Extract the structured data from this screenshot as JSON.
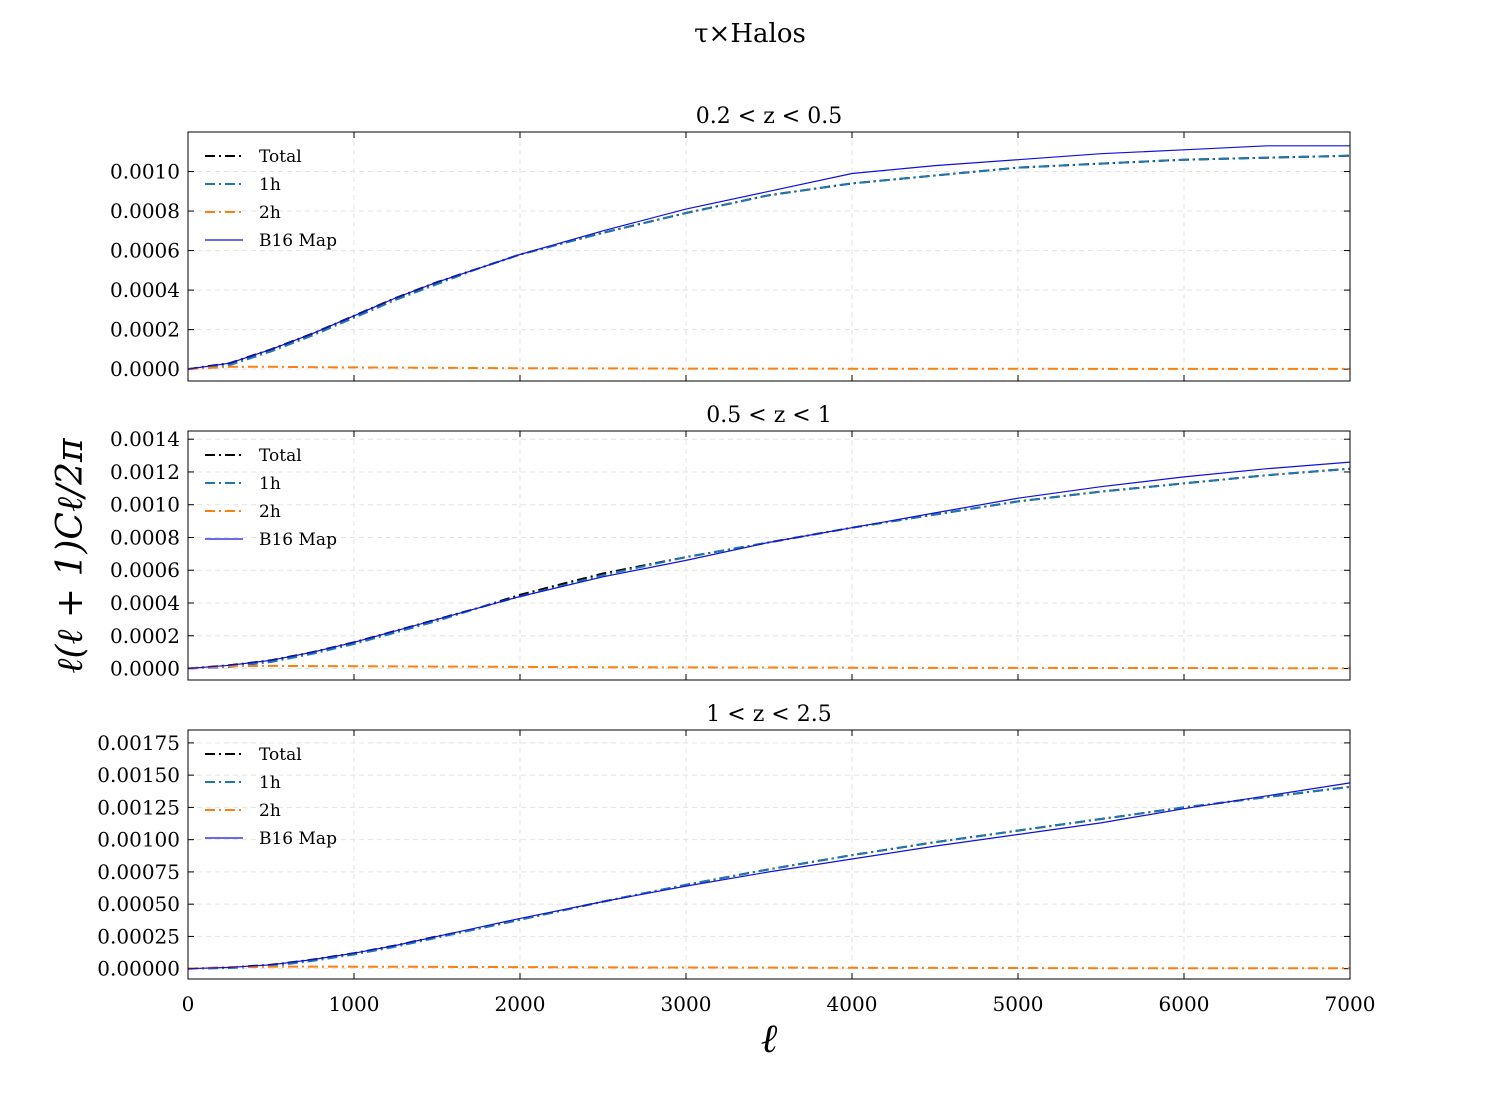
{
  "figure": {
    "suptitle": "τ×Halos",
    "xlabel": "ℓ",
    "ylabel": "ℓ(ℓ + 1)Cℓ/2π"
  },
  "chart_data": [
    {
      "type": "line",
      "title": "0.2 < z < 0.5",
      "xlim": [
        0,
        7000
      ],
      "ylim": [
        -6e-05,
        0.0012
      ],
      "xticks": [
        0,
        1000,
        2000,
        3000,
        4000,
        5000,
        6000,
        7000
      ],
      "yticks": [
        "0.0000",
        "0.0002",
        "0.0004",
        "0.0006",
        "0.0008",
        "0.0010"
      ],
      "grid": true,
      "legend_position": "upper-left",
      "x": [
        0,
        250,
        500,
        750,
        1000,
        1250,
        1500,
        1750,
        2000,
        2500,
        3000,
        3500,
        4000,
        4500,
        5000,
        5500,
        6000,
        6500,
        7000
      ],
      "series": [
        {
          "name": "Total",
          "color": "#000000",
          "style": "dashdot",
          "values": [
            0.0,
            3e-05,
            0.0001,
            0.00018,
            0.00027,
            0.00036,
            0.00044,
            0.00051,
            0.00058,
            0.00069,
            0.00079,
            0.00088,
            0.00094,
            0.00098,
            0.00102,
            0.00104,
            0.00106,
            0.00107,
            0.00108
          ]
        },
        {
          "name": "1h",
          "color": "#1f77b4",
          "style": "dashdot",
          "values": [
            0.0,
            2e-05,
            9e-05,
            0.00017,
            0.00026,
            0.00035,
            0.00043,
            0.00051,
            0.00058,
            0.00069,
            0.00079,
            0.00088,
            0.00094,
            0.00098,
            0.00102,
            0.00104,
            0.00106,
            0.00107,
            0.00108
          ]
        },
        {
          "name": "2h",
          "color": "#ff7f0e",
          "style": "dashdot",
          "values": [
            0.0,
            1.2e-05,
            1.2e-05,
            1e-05,
            9e-06,
            8e-06,
            7e-06,
            6e-06,
            5e-06,
            4e-06,
            3e-06,
            3e-06,
            2e-06,
            2e-06,
            2e-06,
            1e-06,
            1e-06,
            1e-06,
            1e-06
          ]
        },
        {
          "name": "B16 Map",
          "color": "#1010e0",
          "style": "solid",
          "values": [
            0.0,
            3e-05,
            0.0001,
            0.00018,
            0.00027,
            0.00036,
            0.00044,
            0.00051,
            0.00058,
            0.0007,
            0.00081,
            0.0009,
            0.00099,
            0.00103,
            0.00106,
            0.00109,
            0.00111,
            0.00113,
            0.00113
          ]
        }
      ]
    },
    {
      "type": "line",
      "title": "0.5 < z < 1",
      "xlim": [
        0,
        7000
      ],
      "ylim": [
        -7e-05,
        0.00145
      ],
      "xticks": [
        0,
        1000,
        2000,
        3000,
        4000,
        5000,
        6000,
        7000
      ],
      "yticks": [
        "0.0000",
        "0.0002",
        "0.0004",
        "0.0006",
        "0.0008",
        "0.0010",
        "0.0012",
        "0.0014"
      ],
      "grid": true,
      "legend_position": "upper-left",
      "x": [
        0,
        250,
        500,
        750,
        1000,
        1250,
        1500,
        1750,
        2000,
        2500,
        3000,
        3500,
        4000,
        4500,
        5000,
        5500,
        6000,
        6500,
        7000
      ],
      "series": [
        {
          "name": "Total",
          "color": "#000000",
          "style": "dashdot",
          "values": [
            0.0,
            2e-05,
            5e-05,
            0.0001,
            0.00016,
            0.00023,
            0.0003,
            0.00037,
            0.00045,
            0.00058,
            0.00068,
            0.00077,
            0.00086,
            0.00094,
            0.00102,
            0.00108,
            0.00113,
            0.00118,
            0.00122
          ]
        },
        {
          "name": "1h",
          "color": "#1f77b4",
          "style": "dashdot",
          "values": [
            0.0,
            1e-05,
            4e-05,
            9e-05,
            0.00015,
            0.00022,
            0.00029,
            0.00037,
            0.00044,
            0.00057,
            0.00068,
            0.00077,
            0.00086,
            0.00094,
            0.00102,
            0.00108,
            0.00113,
            0.00118,
            0.00122
          ]
        },
        {
          "name": "2h",
          "color": "#ff7f0e",
          "style": "dashdot",
          "values": [
            0.0,
            1.5e-05,
            1.6e-05,
            1.5e-05,
            1.4e-05,
            1.3e-05,
            1.2e-05,
            1.1e-05,
            1e-05,
            8e-06,
            7e-06,
            6e-06,
            5e-06,
            4e-06,
            4e-06,
            3e-06,
            3e-06,
            2e-06,
            2e-06
          ]
        },
        {
          "name": "B16 Map",
          "color": "#1010e0",
          "style": "solid",
          "values": [
            0.0,
            2e-05,
            5e-05,
            0.0001,
            0.00016,
            0.00023,
            0.0003,
            0.00037,
            0.00044,
            0.00056,
            0.00066,
            0.00077,
            0.00086,
            0.00095,
            0.00104,
            0.00111,
            0.00117,
            0.00122,
            0.00126
          ]
        }
      ]
    },
    {
      "type": "line",
      "title": "1 < z < 2.5",
      "xlim": [
        0,
        7000
      ],
      "ylim": [
        -8e-05,
        0.00185
      ],
      "xticks": [
        0,
        1000,
        2000,
        3000,
        4000,
        5000,
        6000,
        7000
      ],
      "yticks": [
        "0.00000",
        "0.00025",
        "0.00050",
        "0.00075",
        "0.00100",
        "0.00125",
        "0.00150",
        "0.00175"
      ],
      "grid": true,
      "legend_position": "upper-left",
      "x": [
        0,
        250,
        500,
        750,
        1000,
        1250,
        1500,
        1750,
        2000,
        2500,
        3000,
        3500,
        4000,
        4500,
        5000,
        5500,
        6000,
        6500,
        7000
      ],
      "series": [
        {
          "name": "Total",
          "color": "#000000",
          "style": "dashdot",
          "values": [
            0.0,
            1e-05,
            3e-05,
            7e-05,
            0.00012,
            0.00018,
            0.00025,
            0.00031,
            0.00038,
            0.00052,
            0.00065,
            0.00077,
            0.00088,
            0.00098,
            0.00107,
            0.00116,
            0.00125,
            0.00133,
            0.00141
          ]
        },
        {
          "name": "1h",
          "color": "#1f77b4",
          "style": "dashdot",
          "values": [
            0.0,
            5e-06,
            2e-05,
            6e-05,
            0.00011,
            0.00017,
            0.00024,
            0.00031,
            0.00038,
            0.00052,
            0.00065,
            0.00077,
            0.00088,
            0.00098,
            0.00107,
            0.00116,
            0.00125,
            0.00133,
            0.00141
          ]
        },
        {
          "name": "2h",
          "color": "#ff7f0e",
          "style": "dashdot",
          "values": [
            0.0,
            1.3e-05,
            1.5e-05,
            1.6e-05,
            1.5e-05,
            1.5e-05,
            1.4e-05,
            1.3e-05,
            1.2e-05,
            1e-05,
            9e-06,
            8e-06,
            7e-06,
            6e-06,
            5e-06,
            4e-06,
            4e-06,
            3e-06,
            3e-06
          ]
        },
        {
          "name": "B16 Map",
          "color": "#1010e0",
          "style": "solid",
          "values": [
            0.0,
            1e-05,
            3e-05,
            7e-05,
            0.00012,
            0.00018,
            0.00025,
            0.00032,
            0.00039,
            0.00052,
            0.00064,
            0.00075,
            0.00085,
            0.00095,
            0.00104,
            0.00113,
            0.00124,
            0.00134,
            0.00144
          ]
        }
      ]
    }
  ]
}
